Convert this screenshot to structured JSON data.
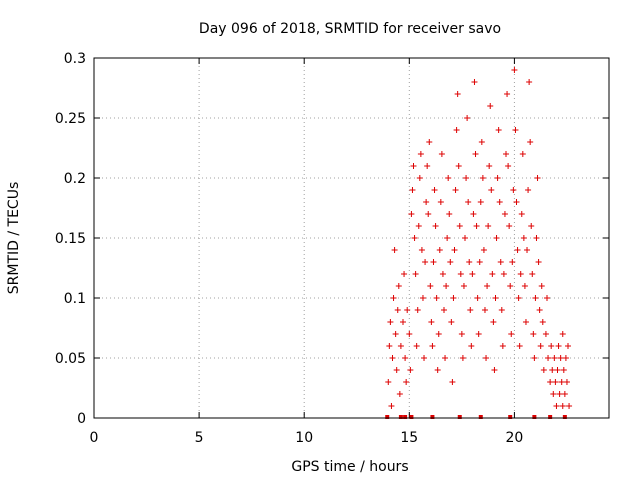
{
  "chart_data": {
    "type": "scatter",
    "title": "Day 096 of 2018, SRMTID for receiver savo",
    "xlabel": "GPS time / hours",
    "ylabel": "SRMTID / TECUs",
    "xlim": [
      0,
      24.5
    ],
    "ylim": [
      0,
      0.3
    ],
    "xticks": [
      0,
      5,
      10,
      15,
      20
    ],
    "xtick_labels": [
      "0",
      "5",
      "10",
      "15",
      "20"
    ],
    "yticks": [
      0,
      0.05,
      0.1,
      0.15,
      0.2,
      0.25,
      0.3
    ],
    "ytick_labels": [
      "0",
      "0.05",
      "0.1",
      "0.15",
      "0.2",
      "0.25",
      "0.3"
    ],
    "grid": true,
    "marker": "+",
    "color": "#dd0000",
    "x_range_of_data": [
      13.9,
      22.6
    ],
    "series": [
      {
        "name": "SRMTID",
        "points": [
          [
            14.0,
            0.03
          ],
          [
            14.05,
            0.06
          ],
          [
            14.1,
            0.08
          ],
          [
            14.15,
            0.01
          ],
          [
            14.2,
            0.05
          ],
          [
            14.25,
            0.1
          ],
          [
            14.3,
            0.14
          ],
          [
            14.35,
            0.07
          ],
          [
            14.4,
            0.04
          ],
          [
            14.45,
            0.09
          ],
          [
            14.5,
            0.11
          ],
          [
            14.55,
            0.02
          ],
          [
            14.6,
            0.06
          ],
          [
            14.7,
            0.08
          ],
          [
            14.75,
            0.12
          ],
          [
            14.8,
            0.05
          ],
          [
            14.85,
            0.03
          ],
          [
            14.9,
            0.09
          ],
          [
            15.0,
            0.07
          ],
          [
            15.05,
            0.04
          ],
          [
            15.1,
            0.17
          ],
          [
            15.15,
            0.19
          ],
          [
            15.2,
            0.21
          ],
          [
            15.25,
            0.15
          ],
          [
            15.3,
            0.12
          ],
          [
            15.35,
            0.06
          ],
          [
            15.4,
            0.09
          ],
          [
            15.45,
            0.16
          ],
          [
            15.5,
            0.2
          ],
          [
            15.55,
            0.22
          ],
          [
            15.6,
            0.14
          ],
          [
            15.65,
            0.1
          ],
          [
            15.7,
            0.05
          ],
          [
            15.75,
            0.13
          ],
          [
            15.8,
            0.18
          ],
          [
            15.85,
            0.21
          ],
          [
            15.9,
            0.17
          ],
          [
            15.95,
            0.23
          ],
          [
            16.0,
            0.11
          ],
          [
            16.05,
            0.08
          ],
          [
            16.1,
            0.06
          ],
          [
            16.15,
            0.13
          ],
          [
            16.2,
            0.19
          ],
          [
            16.25,
            0.16
          ],
          [
            16.3,
            0.1
          ],
          [
            16.35,
            0.04
          ],
          [
            16.4,
            0.07
          ],
          [
            16.45,
            0.14
          ],
          [
            16.5,
            0.18
          ],
          [
            16.55,
            0.22
          ],
          [
            16.6,
            0.12
          ],
          [
            16.65,
            0.09
          ],
          [
            16.7,
            0.05
          ],
          [
            16.75,
            0.11
          ],
          [
            16.8,
            0.15
          ],
          [
            16.85,
            0.2
          ],
          [
            16.9,
            0.17
          ],
          [
            16.95,
            0.13
          ],
          [
            17.0,
            0.08
          ],
          [
            17.05,
            0.03
          ],
          [
            17.1,
            0.1
          ],
          [
            17.15,
            0.14
          ],
          [
            17.2,
            0.19
          ],
          [
            17.25,
            0.24
          ],
          [
            17.3,
            0.27
          ],
          [
            17.35,
            0.21
          ],
          [
            17.4,
            0.16
          ],
          [
            17.45,
            0.12
          ],
          [
            17.5,
            0.07
          ],
          [
            17.55,
            0.05
          ],
          [
            17.6,
            0.11
          ],
          [
            17.65,
            0.15
          ],
          [
            17.7,
            0.2
          ],
          [
            17.75,
            0.25
          ],
          [
            17.8,
            0.18
          ],
          [
            17.85,
            0.13
          ],
          [
            17.9,
            0.09
          ],
          [
            17.95,
            0.06
          ],
          [
            18.0,
            0.12
          ],
          [
            18.05,
            0.17
          ],
          [
            18.1,
            0.28
          ],
          [
            18.15,
            0.22
          ],
          [
            18.2,
            0.16
          ],
          [
            18.25,
            0.1
          ],
          [
            18.3,
            0.07
          ],
          [
            18.35,
            0.13
          ],
          [
            18.4,
            0.18
          ],
          [
            18.45,
            0.23
          ],
          [
            18.5,
            0.2
          ],
          [
            18.55,
            0.14
          ],
          [
            18.6,
            0.09
          ],
          [
            18.65,
            0.05
          ],
          [
            18.7,
            0.11
          ],
          [
            18.75,
            0.16
          ],
          [
            18.8,
            0.21
          ],
          [
            18.85,
            0.26
          ],
          [
            18.9,
            0.19
          ],
          [
            18.95,
            0.12
          ],
          [
            19.0,
            0.08
          ],
          [
            19.05,
            0.04
          ],
          [
            19.1,
            0.1
          ],
          [
            19.15,
            0.15
          ],
          [
            19.2,
            0.2
          ],
          [
            19.25,
            0.24
          ],
          [
            19.3,
            0.18
          ],
          [
            19.35,
            0.13
          ],
          [
            19.4,
            0.09
          ],
          [
            19.45,
            0.06
          ],
          [
            19.5,
            0.12
          ],
          [
            19.55,
            0.17
          ],
          [
            19.6,
            0.22
          ],
          [
            19.65,
            0.27
          ],
          [
            19.7,
            0.21
          ],
          [
            19.75,
            0.16
          ],
          [
            19.8,
            0.11
          ],
          [
            19.85,
            0.07
          ],
          [
            19.9,
            0.13
          ],
          [
            19.95,
            0.19
          ],
          [
            20.0,
            0.29
          ],
          [
            20.05,
            0.24
          ],
          [
            20.1,
            0.18
          ],
          [
            20.15,
            0.14
          ],
          [
            20.2,
            0.1
          ],
          [
            20.25,
            0.06
          ],
          [
            20.3,
            0.12
          ],
          [
            20.35,
            0.17
          ],
          [
            20.4,
            0.22
          ],
          [
            20.45,
            0.15
          ],
          [
            20.5,
            0.11
          ],
          [
            20.55,
            0.08
          ],
          [
            20.6,
            0.14
          ],
          [
            20.65,
            0.19
          ],
          [
            20.7,
            0.28
          ],
          [
            20.75,
            0.23
          ],
          [
            20.8,
            0.16
          ],
          [
            20.85,
            0.12
          ],
          [
            20.9,
            0.07
          ],
          [
            20.95,
            0.05
          ],
          [
            21.0,
            0.1
          ],
          [
            21.05,
            0.15
          ],
          [
            21.1,
            0.2
          ],
          [
            21.15,
            0.13
          ],
          [
            21.2,
            0.09
          ],
          [
            21.25,
            0.06
          ],
          [
            21.3,
            0.11
          ],
          [
            21.35,
            0.08
          ],
          [
            21.4,
            0.04
          ],
          [
            21.5,
            0.07
          ],
          [
            21.55,
            0.1
          ],
          [
            21.6,
            0.05
          ],
          [
            21.7,
            0.03
          ],
          [
            21.75,
            0.06
          ],
          [
            21.8,
            0.04
          ],
          [
            21.85,
            0.02
          ],
          [
            21.9,
            0.05
          ],
          [
            21.95,
            0.03
          ],
          [
            22.0,
            0.01
          ],
          [
            22.05,
            0.04
          ],
          [
            22.1,
            0.06
          ],
          [
            22.15,
            0.02
          ],
          [
            22.2,
            0.05
          ],
          [
            22.25,
            0.03
          ],
          [
            22.3,
            0.07
          ],
          [
            22.35,
            0.04
          ],
          [
            22.4,
            0.02
          ],
          [
            22.45,
            0.05
          ],
          [
            22.5,
            0.03
          ],
          [
            22.55,
            0.06
          ],
          [
            22.6,
            0.01
          ],
          [
            22.3,
            0.01
          ]
        ]
      }
    ],
    "zero_markers_x": [
      13.95,
      14.6,
      14.8,
      15.1,
      16.1,
      17.4,
      18.4,
      19.8,
      20.95,
      21.7,
      22.4
    ]
  }
}
